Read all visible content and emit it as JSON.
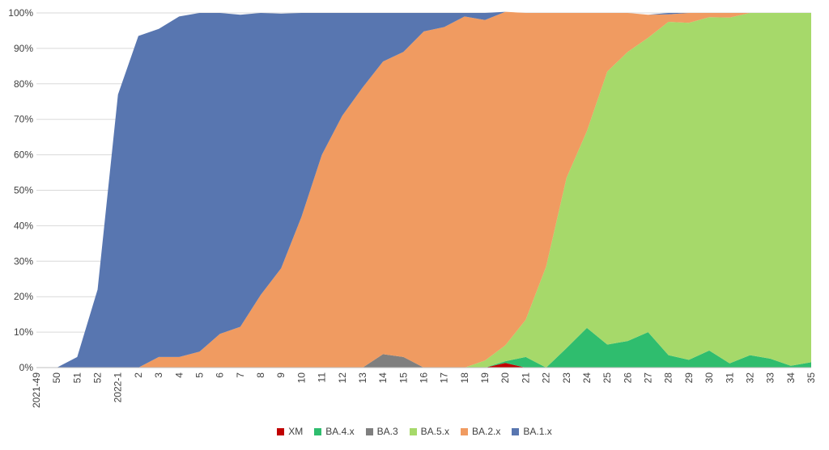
{
  "chart_data": {
    "type": "area",
    "stacked": true,
    "percent": true,
    "x": [
      "2021-49",
      "50",
      "51",
      "52",
      "2022-1",
      "2",
      "3",
      "4",
      "5",
      "6",
      "7",
      "8",
      "9",
      "10",
      "11",
      "12",
      "13",
      "14",
      "15",
      "16",
      "17",
      "18",
      "19",
      "20",
      "21",
      "22",
      "23",
      "24",
      "25",
      "26",
      "27",
      "28",
      "29",
      "30",
      "31",
      "32",
      "33",
      "34",
      "35"
    ],
    "ylim": [
      0,
      100
    ],
    "y_ticks": [
      "0%",
      "10%",
      "20%",
      "30%",
      "40%",
      "50%",
      "60%",
      "70%",
      "80%",
      "90%",
      "100%"
    ],
    "grid": "horizontal",
    "legend_position": "bottom",
    "series": [
      {
        "name": "XM",
        "color": "#c00000",
        "values": [
          0,
          0,
          0,
          0,
          0,
          0,
          0,
          0,
          0,
          0,
          0,
          0,
          0,
          0,
          0,
          0,
          0,
          0,
          0,
          0,
          0,
          0,
          0,
          1.3,
          0,
          0,
          0,
          0,
          0,
          0,
          0,
          0,
          0,
          0,
          0,
          0,
          0,
          0,
          0
        ]
      },
      {
        "name": "BA.4.x",
        "color": "#2fbd6e",
        "values": [
          0,
          0,
          0,
          0,
          0,
          0,
          0,
          0,
          0,
          0,
          0,
          0,
          0,
          0,
          0,
          0,
          0,
          0,
          0,
          0,
          0,
          0,
          0,
          0.5,
          3,
          0,
          5.5,
          11.2,
          6.5,
          7.5,
          10,
          3.5,
          2.2,
          4.8,
          1.2,
          3.5,
          2.5,
          0.5,
          1.5
        ]
      },
      {
        "name": "BA.3",
        "color": "#7f7f7f",
        "values": [
          0,
          0,
          0,
          0,
          0,
          0,
          0,
          0,
          0,
          0,
          0,
          0,
          0,
          0,
          0,
          0,
          0,
          3.8,
          3,
          0,
          0,
          0,
          0,
          0,
          0,
          0,
          0,
          0,
          0,
          0,
          0,
          0,
          0,
          0,
          0,
          0,
          0,
          0,
          0
        ]
      },
      {
        "name": "BA.5.x",
        "color": "#a6d96a",
        "values": [
          0,
          0,
          0,
          0,
          0,
          0,
          0,
          0,
          0,
          0,
          0,
          0,
          0,
          0,
          0,
          0,
          0,
          0,
          0,
          0,
          0,
          0,
          2,
          4.5,
          10.5,
          28.5,
          48,
          55.5,
          77,
          81.5,
          83,
          94,
          95,
          94,
          97.5,
          96.5,
          97.5,
          99.5,
          98.5
        ]
      },
      {
        "name": "BA.2.x",
        "color": "#f09b61",
        "values": [
          0,
          0,
          0,
          0,
          0,
          0,
          3,
          3,
          4.5,
          9.5,
          11.5,
          20.5,
          28,
          42.5,
          60,
          71,
          79,
          82.5,
          86,
          94.8,
          96,
          99,
          96,
          94,
          86.5,
          71.5,
          46.5,
          33.3,
          16.5,
          11,
          6.5,
          2.1,
          2.8,
          1.2,
          1.3,
          0,
          0,
          0,
          0
        ]
      },
      {
        "name": "BA.1.x",
        "color": "#5876b0",
        "values": [
          0,
          0,
          3,
          22,
          77,
          93.5,
          92.5,
          96,
          95.5,
          90.5,
          88,
          79.5,
          71.8,
          57.5,
          40,
          29,
          21,
          13.7,
          11,
          5.2,
          4,
          1,
          2,
          0,
          0,
          0,
          0,
          0,
          0,
          0,
          0,
          0.4,
          0,
          0,
          0,
          0,
          0,
          0,
          0
        ]
      }
    ],
    "legend": [
      "XM",
      "BA.4.x",
      "BA.3",
      "BA.5.x",
      "BA.2.x",
      "BA.1.x"
    ]
  }
}
